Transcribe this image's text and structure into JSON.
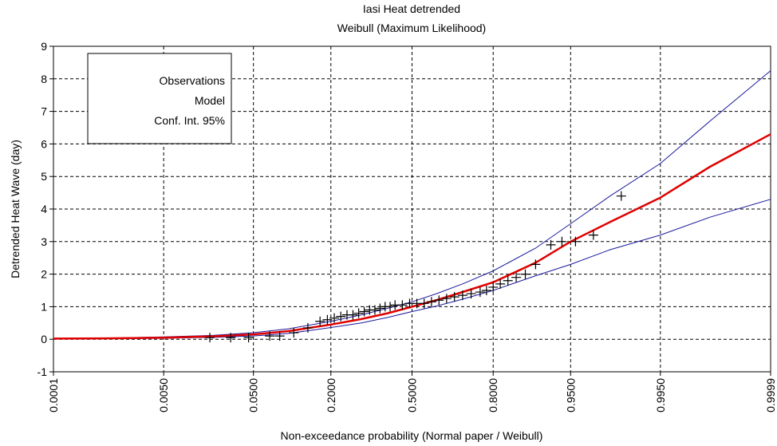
{
  "chart_data": {
    "type": "probability",
    "title": "Iasi Heat detrended",
    "subtitle": "Weibull (Maximum Likelihood)",
    "x_label": "Non-exceedance probability (Normal paper / Weibull)",
    "y_label": "Detrended Heat Wave (day)",
    "xscale": "normal",
    "xlim": [
      0.0001,
      0.9999
    ],
    "xticks": [
      {
        "value": 0.0001,
        "label": "0.0001"
      },
      {
        "value": 0.005,
        "label": "0.0050"
      },
      {
        "value": 0.05,
        "label": "0.0500"
      },
      {
        "value": 0.2,
        "label": "0.2000"
      },
      {
        "value": 0.5,
        "label": "0.5000"
      },
      {
        "value": 0.8,
        "label": "0.8000"
      },
      {
        "value": 0.95,
        "label": "0.9500"
      },
      {
        "value": 0.995,
        "label": "0.9950"
      },
      {
        "value": 0.9999,
        "label": "0.9999"
      }
    ],
    "ylim": [
      -1,
      9
    ],
    "yticks": [
      -1,
      0,
      1,
      2,
      3,
      4,
      5,
      6,
      7,
      8,
      9
    ],
    "grid": true,
    "legend": "upper left",
    "series": [
      {
        "name": "Observations",
        "color": "#000000",
        "marker": "+",
        "x": [
          0.018,
          0.03,
          0.045,
          0.07,
          0.085,
          0.11,
          0.14,
          0.17,
          0.19,
          0.21,
          0.23,
          0.25,
          0.27,
          0.29,
          0.31,
          0.33,
          0.35,
          0.37,
          0.39,
          0.41,
          0.43,
          0.46,
          0.49,
          0.52,
          0.55,
          0.58,
          0.61,
          0.64,
          0.67,
          0.7,
          0.73,
          0.76,
          0.78,
          0.8,
          0.82,
          0.84,
          0.86,
          0.88,
          0.9,
          0.925,
          0.94,
          0.955,
          0.97,
          0.985
        ],
        "values": [
          0.05,
          0.05,
          0.05,
          0.1,
          0.1,
          0.2,
          0.35,
          0.55,
          0.6,
          0.65,
          0.7,
          0.75,
          0.75,
          0.8,
          0.85,
          0.9,
          0.9,
          0.95,
          1.0,
          1.0,
          1.05,
          1.05,
          1.1,
          1.1,
          1.1,
          1.15,
          1.2,
          1.25,
          1.3,
          1.35,
          1.4,
          1.45,
          1.5,
          1.6,
          1.7,
          1.8,
          1.9,
          2.0,
          2.3,
          2.9,
          3.0,
          3.0,
          3.2,
          4.4
        ]
      },
      {
        "name": "Model",
        "color": "#e00000",
        "x": [
          0.0001,
          0.001,
          0.005,
          0.02,
          0.05,
          0.1,
          0.2,
          0.3,
          0.4,
          0.5,
          0.6,
          0.7,
          0.8,
          0.9,
          0.95,
          0.98,
          0.995,
          0.999,
          0.9999
        ],
        "values": [
          0.02,
          0.03,
          0.05,
          0.09,
          0.15,
          0.25,
          0.45,
          0.62,
          0.8,
          1.0,
          1.2,
          1.45,
          1.75,
          2.35,
          3.0,
          3.6,
          4.35,
          5.3,
          6.3
        ]
      },
      {
        "name": "Conf. Int. 95%",
        "color": "#1a1a9c",
        "x": [
          0.0001,
          0.001,
          0.005,
          0.02,
          0.05,
          0.1,
          0.2,
          0.3,
          0.4,
          0.5,
          0.6,
          0.7,
          0.8,
          0.9,
          0.95,
          0.98,
          0.995,
          0.999,
          0.9999
        ],
        "upper": [
          0.03,
          0.04,
          0.07,
          0.12,
          0.2,
          0.32,
          0.55,
          0.75,
          0.95,
          1.15,
          1.4,
          1.7,
          2.1,
          2.8,
          3.55,
          4.4,
          5.4,
          6.7,
          8.25
        ],
        "lower": [
          0.01,
          0.02,
          0.03,
          0.06,
          0.1,
          0.18,
          0.36,
          0.5,
          0.67,
          0.85,
          1.02,
          1.23,
          1.5,
          1.95,
          2.3,
          2.75,
          3.2,
          3.75,
          4.3
        ]
      }
    ]
  }
}
